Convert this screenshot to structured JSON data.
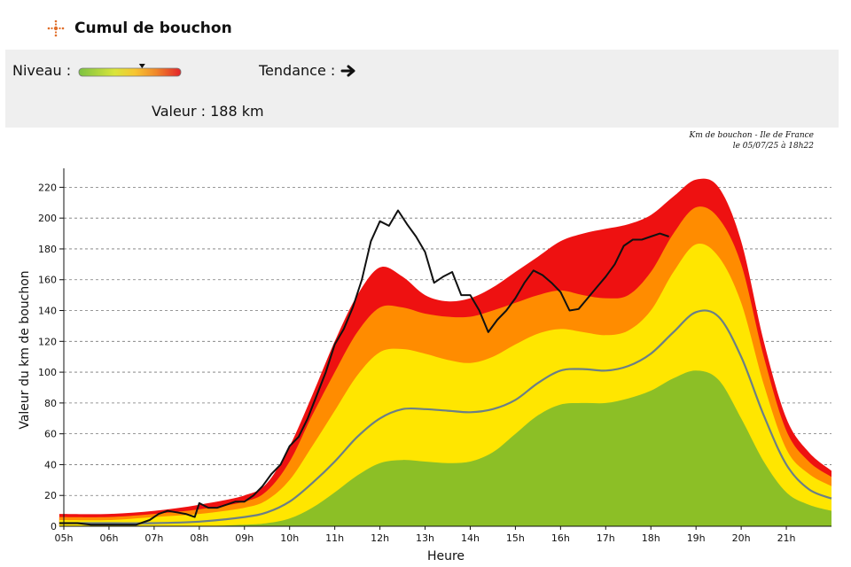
{
  "header": {
    "title": "Cumul de bouchon",
    "icon": "crosshair-icon"
  },
  "indicators": {
    "niveau_label": "Niveau :",
    "niveau_fraction": 0.62,
    "tendance_label": "Tendance :",
    "tendance_icon": "arrow-right-icon",
    "valeur_text": "Valeur : 188 km"
  },
  "caption": {
    "line1": "Km de bouchon - Ile de France",
    "line2": "le 05/07/25 à 18h22"
  },
  "chart_data": {
    "type": "area",
    "xlabel": "Heure",
    "ylabel": "Valeur du km de bouchon",
    "x_range": [
      5,
      22
    ],
    "ylim": [
      0,
      230
    ],
    "yticks": [
      0,
      20,
      40,
      60,
      80,
      100,
      120,
      140,
      160,
      180,
      200,
      220
    ],
    "xticks": [
      {
        "h": 5,
        "label": "05h"
      },
      {
        "h": 6,
        "label": "06h"
      },
      {
        "h": 7,
        "label": "07h"
      },
      {
        "h": 8,
        "label": "08h"
      },
      {
        "h": 9,
        "label": "09h"
      },
      {
        "h": 10,
        "label": "10h"
      },
      {
        "h": 11,
        "label": "11h"
      },
      {
        "h": 12,
        "label": "12h"
      },
      {
        "h": 13,
        "label": "13h"
      },
      {
        "h": 14,
        "label": "14h"
      },
      {
        "h": 15,
        "label": "15h"
      },
      {
        "h": 16,
        "label": "16h"
      },
      {
        "h": 17,
        "label": "17h"
      },
      {
        "h": 18,
        "label": "18h"
      },
      {
        "h": 19,
        "label": "19h"
      },
      {
        "h": 20,
        "label": "20h"
      },
      {
        "h": 21,
        "label": "21h"
      }
    ],
    "grid": "horizontal-dashed",
    "bands": [
      {
        "color": "#ee1111",
        "x": [
          4.9,
          6,
          7,
          8,
          9,
          9.5,
          10,
          10.5,
          11,
          11.5,
          12,
          12.5,
          13,
          13.5,
          14,
          14.5,
          15,
          15.5,
          16,
          16.5,
          17,
          17.5,
          18,
          18.5,
          19,
          19.5,
          20,
          20.5,
          21,
          21.5,
          22
        ],
        "y": [
          8,
          8,
          10,
          14,
          20,
          28,
          52,
          85,
          120,
          150,
          168,
          162,
          150,
          146,
          148,
          155,
          165,
          175,
          185,
          190,
          193,
          196,
          202,
          214,
          225,
          220,
          185,
          120,
          70,
          48,
          36
        ]
      },
      {
        "color": "#ff8c00",
        "x": [
          4.9,
          6,
          7,
          8,
          9,
          9.5,
          10,
          10.5,
          11,
          11.5,
          12,
          12.5,
          13,
          13.5,
          14,
          14.5,
          15,
          15.5,
          16,
          16.5,
          17,
          17.5,
          18,
          18.5,
          19,
          19.5,
          20,
          20.5,
          21,
          21.5,
          22
        ],
        "y": [
          6,
          6,
          8,
          11,
          16,
          23,
          42,
          72,
          100,
          126,
          142,
          142,
          138,
          136,
          136,
          140,
          145,
          150,
          153,
          150,
          148,
          150,
          165,
          190,
          207,
          200,
          170,
          110,
          62,
          42,
          32
        ]
      },
      {
        "color": "#ffe600",
        "x": [
          4.9,
          6,
          7,
          8,
          9,
          9.5,
          10,
          10.5,
          11,
          11.5,
          12,
          12.5,
          13,
          13.5,
          14,
          14.5,
          15,
          15.5,
          16,
          16.5,
          17,
          17.5,
          18,
          18.5,
          19,
          19.5,
          20,
          20.5,
          21,
          21.5,
          22
        ],
        "y": [
          4,
          4,
          6,
          8,
          12,
          17,
          30,
          52,
          75,
          98,
          113,
          115,
          112,
          108,
          106,
          110,
          118,
          125,
          128,
          126,
          124,
          127,
          140,
          165,
          183,
          175,
          145,
          92,
          50,
          34,
          26
        ]
      },
      {
        "color": "#8cbf26",
        "x": [
          4.9,
          6,
          7,
          8,
          9,
          9.5,
          10,
          10.5,
          11,
          11.5,
          12,
          12.5,
          13,
          13.5,
          14,
          14.5,
          15,
          15.5,
          16,
          16.5,
          17,
          17.5,
          18,
          18.5,
          19,
          19.5,
          20,
          20.5,
          21,
          21.5,
          22
        ],
        "y": [
          0,
          0,
          0,
          0,
          1,
          2,
          5,
          12,
          22,
          33,
          41,
          43,
          42,
          41,
          42,
          48,
          60,
          72,
          79,
          80,
          80,
          83,
          88,
          96,
          101,
          95,
          70,
          42,
          22,
          14,
          10
        ]
      }
    ],
    "series": [
      {
        "color": "#6b7f86",
        "style": "smooth",
        "x": [
          4.9,
          6,
          7,
          8,
          9,
          9.5,
          10,
          10.5,
          11,
          11.5,
          12,
          12.5,
          13,
          13.5,
          14,
          14.5,
          15,
          15.5,
          16,
          16.5,
          17,
          17.5,
          18,
          18.5,
          19,
          19.5,
          20,
          20.5,
          21,
          21.5,
          22
        ],
        "y": [
          2,
          2,
          2,
          3,
          6,
          9,
          16,
          28,
          42,
          58,
          70,
          76,
          76,
          75,
          74,
          76,
          82,
          93,
          101,
          102,
          101,
          104,
          112,
          126,
          139,
          136,
          110,
          72,
          40,
          24,
          18
        ]
      },
      {
        "color": "#111111",
        "style": "jagged",
        "x": [
          4.9,
          5.3,
          5.6,
          6.0,
          6.3,
          6.6,
          6.9,
          7.1,
          7.3,
          7.5,
          7.7,
          7.9,
          8.0,
          8.2,
          8.4,
          8.6,
          8.8,
          9.0,
          9.2,
          9.4,
          9.6,
          9.8,
          10.0,
          10.2,
          10.4,
          10.6,
          10.8,
          11.0,
          11.2,
          11.4,
          11.6,
          11.8,
          12.0,
          12.2,
          12.4,
          12.6,
          12.8,
          13.0,
          13.2,
          13.4,
          13.6,
          13.8,
          14.0,
          14.2,
          14.4,
          14.6,
          14.8,
          15.0,
          15.2,
          15.4,
          15.6,
          15.8,
          16.0,
          16.2,
          16.4,
          16.6,
          16.8,
          17.0,
          17.2,
          17.4,
          17.6,
          17.8,
          18.0,
          18.2,
          18.4
        ],
        "y": [
          2,
          2,
          1,
          1,
          1,
          1,
          4,
          8,
          10,
          9,
          8,
          6,
          15,
          12,
          12,
          14,
          16,
          16,
          20,
          26,
          34,
          40,
          52,
          58,
          70,
          85,
          100,
          118,
          128,
          142,
          160,
          185,
          198,
          195,
          205,
          196,
          188,
          178,
          158,
          162,
          165,
          150,
          150,
          140,
          126,
          134,
          140,
          148,
          158,
          166,
          163,
          158,
          152,
          140,
          141,
          148,
          155,
          162,
          170,
          182,
          186,
          186,
          188,
          190,
          188
        ]
      }
    ]
  }
}
